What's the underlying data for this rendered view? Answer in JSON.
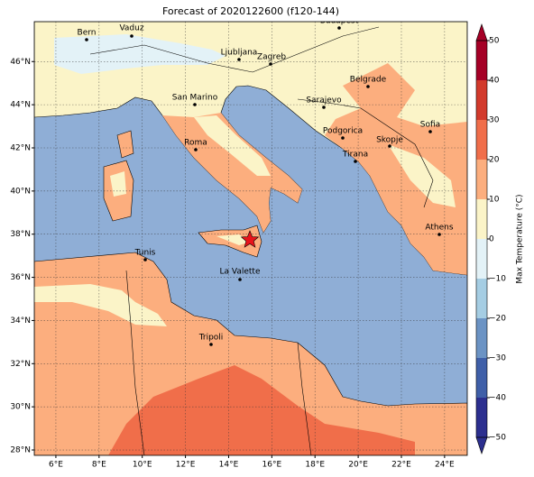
{
  "title": "Forecast of 2020122600 (f120-144)",
  "map": {
    "lonlim": [
      5,
      25.05
    ],
    "latlim": [
      27.75,
      47.85
    ],
    "lon_ticks": [
      {
        "value": 6,
        "label": "6°E"
      },
      {
        "value": 8,
        "label": "8°E"
      },
      {
        "value": 10,
        "label": "10°E"
      },
      {
        "value": 12,
        "label": "12°E"
      },
      {
        "value": 14,
        "label": "14°E"
      },
      {
        "value": 16,
        "label": "16°E"
      },
      {
        "value": 18,
        "label": "18°E"
      },
      {
        "value": 20,
        "label": "20°E"
      },
      {
        "value": 22,
        "label": "22°E"
      },
      {
        "value": 24,
        "label": "24°E"
      }
    ],
    "lat_ticks": [
      {
        "value": 28,
        "label": "28°N"
      },
      {
        "value": 30,
        "label": "30°N"
      },
      {
        "value": 32,
        "label": "32°N"
      },
      {
        "value": 34,
        "label": "34°N"
      },
      {
        "value": 36,
        "label": "36°N"
      },
      {
        "value": 38,
        "label": "38°N"
      },
      {
        "value": 40,
        "label": "40°N"
      },
      {
        "value": 42,
        "label": "42°N"
      },
      {
        "value": 44,
        "label": "44°N"
      },
      {
        "value": 46,
        "label": "46°N"
      }
    ],
    "cities": [
      "Bern",
      "Vaduz",
      "Budapest",
      "Ljubljana",
      "Zagreb",
      "San Marino",
      "Belgrade",
      "Sarajevo",
      "Sofia",
      "Podgorica",
      "Skopje",
      "Roma",
      "Tirana",
      "Athens",
      "Tunis",
      "La Valette",
      "Tripoli"
    ]
  },
  "colorbar": {
    "label": "Max Temperature (°C)",
    "lim": [
      -50,
      50
    ],
    "ticks": [
      {
        "value": -50,
        "label": "−50"
      },
      {
        "value": -40,
        "label": "−40"
      },
      {
        "value": -30,
        "label": "−30"
      },
      {
        "value": -20,
        "label": "−20"
      },
      {
        "value": -10,
        "label": "−10"
      },
      0,
      10,
      20,
      30,
      40,
      50
    ],
    "colors": [
      "#2c2f8f",
      "#3f5fa8",
      "#6b93c4",
      "#a5cde3",
      "#e3f2f7",
      "#fbf4c8",
      "#fcae7e",
      "#f06e4a",
      "#d23a2c",
      "#a50026"
    ]
  }
}
